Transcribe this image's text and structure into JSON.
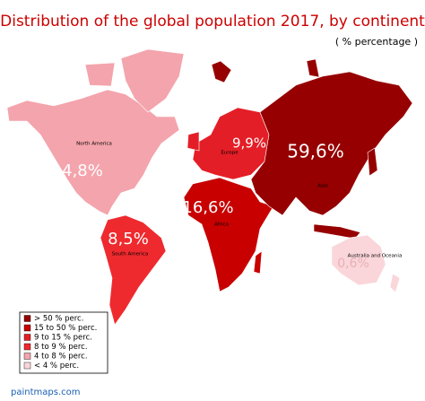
{
  "header": {
    "title": "Distribution of the global population 2017, by continent",
    "subtitle": "( % percentage )"
  },
  "regions": [
    {
      "name": "North America",
      "label": "4,8%",
      "color": "#f4a4ac"
    },
    {
      "name": "South America",
      "label": "8,5%",
      "color": "#ee2a2e"
    },
    {
      "name": "Europe",
      "label": "9,9%",
      "color": "#e41e26"
    },
    {
      "name": "Africa",
      "label": "16,6%",
      "color": "#c80000"
    },
    {
      "name": "Asia",
      "label": "59,6%",
      "color": "#960000"
    },
    {
      "name": "Australia and Oceania",
      "label": "0,6%",
      "color": "#fad6da"
    }
  ],
  "legend": [
    {
      "label": "> 50 % perc.",
      "color": "#960000"
    },
    {
      "label": "15 to 50 % perc.",
      "color": "#c80000"
    },
    {
      "label": "9 to 15 % perc.",
      "color": "#e41e26"
    },
    {
      "label": "8 to 9  % perc.",
      "color": "#ee2a2e"
    },
    {
      "label": "4 to 8 % perc.",
      "color": "#f4a4ac"
    },
    {
      "label": "< 4  % perc.",
      "color": "#fad6da"
    }
  ],
  "footer": "paintmaps.com"
}
